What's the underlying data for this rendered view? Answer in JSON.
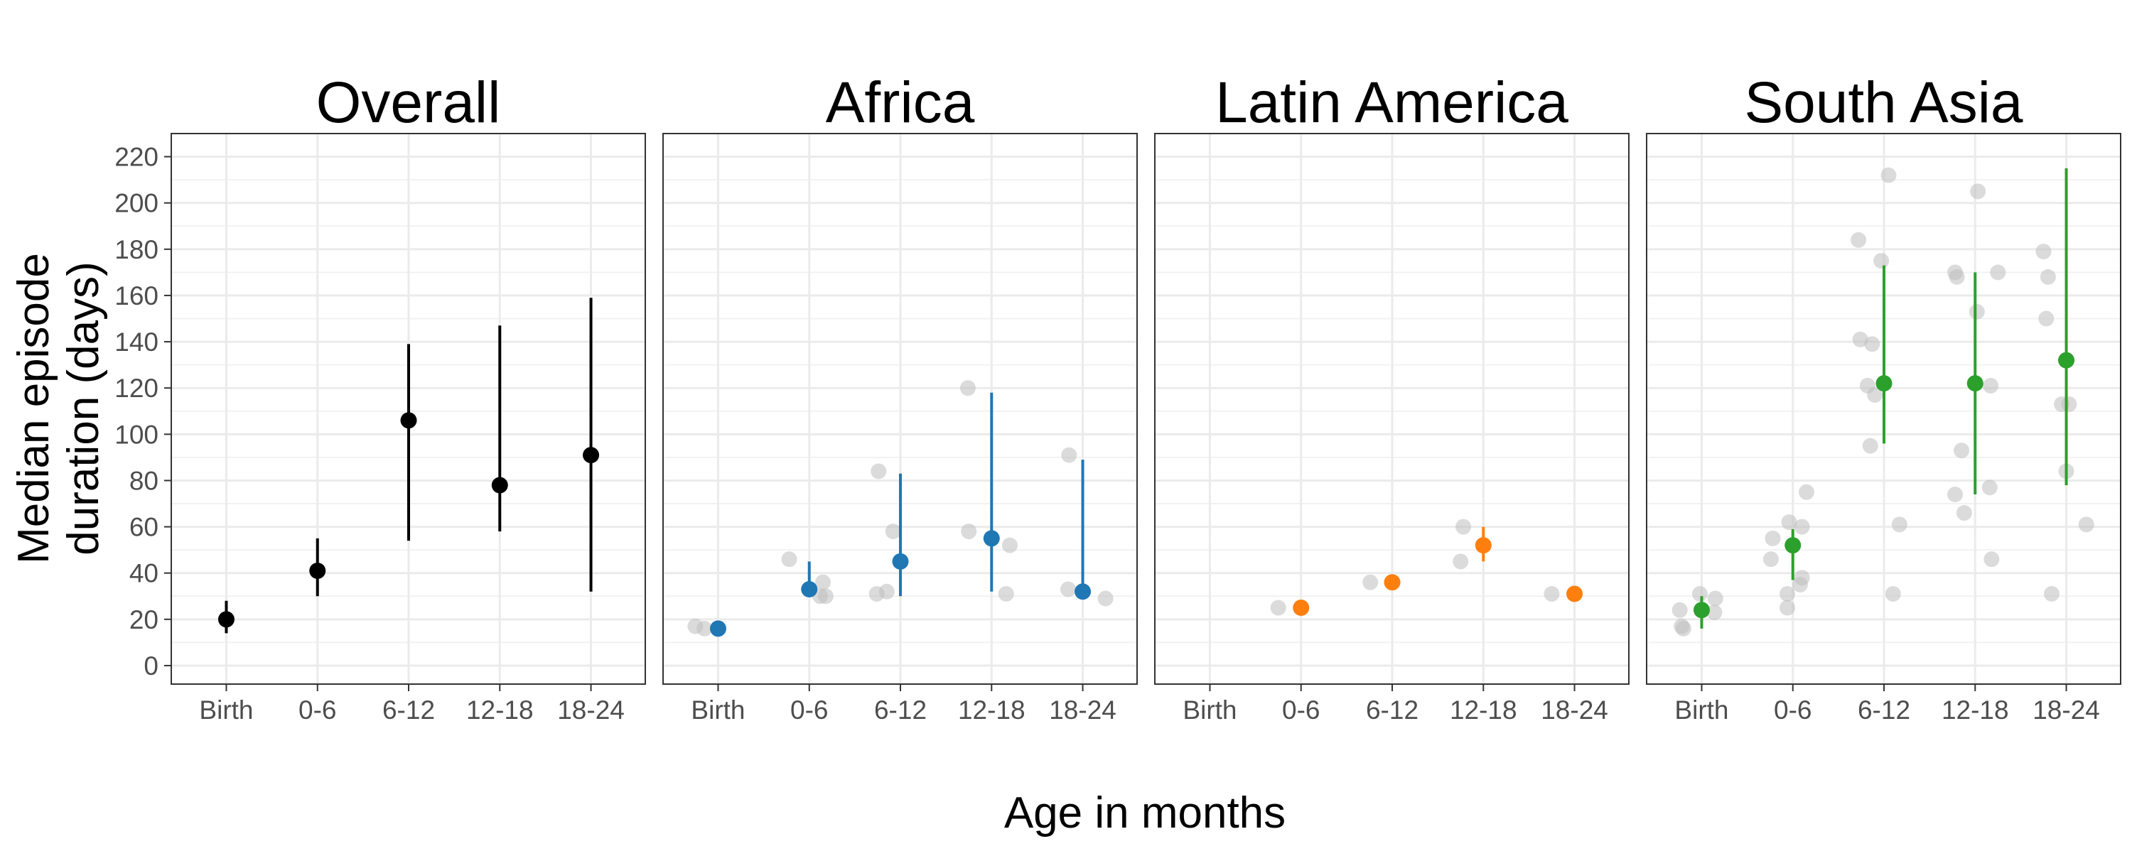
{
  "chart_data": {
    "type": "scatter",
    "ylabel_lines": [
      "Median episode",
      "duration (days)"
    ],
    "xlabel": "Age in months",
    "categories": [
      "Birth",
      "0-6",
      "6-12",
      "12-18",
      "18-24"
    ],
    "y_ticks": [
      0,
      20,
      40,
      60,
      80,
      100,
      120,
      140,
      160,
      180,
      200,
      220
    ],
    "ylim": [
      -8,
      230
    ],
    "grid": true,
    "colors": {
      "Overall": "#000000",
      "Africa": "#1f77b4",
      "Latin America": "#ff7f0e",
      "South Asia": "#2ca02c",
      "individual_points": "#bdbdbd"
    },
    "panels": [
      {
        "title": "Overall",
        "summary": [
          {
            "category": "Birth",
            "median": 20,
            "low": 14,
            "high": 28
          },
          {
            "category": "0-6",
            "median": 41,
            "low": 30,
            "high": 55
          },
          {
            "category": "6-12",
            "median": 106,
            "low": 54,
            "high": 139
          },
          {
            "category": "12-18",
            "median": 78,
            "low": 58,
            "high": 147
          },
          {
            "category": "18-24",
            "median": 91,
            "low": 32,
            "high": 159
          }
        ],
        "points": []
      },
      {
        "title": "Africa",
        "summary": [
          {
            "category": "Birth",
            "median": 16,
            "low": 16,
            "high": 16
          },
          {
            "category": "0-6",
            "median": 33,
            "low": 33,
            "high": 45
          },
          {
            "category": "6-12",
            "median": 45,
            "low": 30,
            "high": 83
          },
          {
            "category": "12-18",
            "median": 55,
            "low": 32,
            "high": 118
          },
          {
            "category": "18-24",
            "median": 32,
            "low": 32,
            "high": 89
          }
        ],
        "points": [
          {
            "category": "Birth",
            "offset": -0.25,
            "y": 17
          },
          {
            "category": "Birth",
            "offset": -0.15,
            "y": 16
          },
          {
            "category": "0-6",
            "offset": -0.22,
            "y": 46
          },
          {
            "category": "0-6",
            "offset": 0.15,
            "y": 36
          },
          {
            "category": "0-6",
            "offset": 0.12,
            "y": 30
          },
          {
            "category": "0-6",
            "offset": 0.18,
            "y": 30
          },
          {
            "category": "6-12",
            "offset": -0.24,
            "y": 84
          },
          {
            "category": "6-12",
            "offset": -0.08,
            "y": 58
          },
          {
            "category": "6-12",
            "offset": -0.15,
            "y": 32
          },
          {
            "category": "6-12",
            "offset": -0.26,
            "y": 31
          },
          {
            "category": "12-18",
            "offset": -0.26,
            "y": 120
          },
          {
            "category": "12-18",
            "offset": -0.25,
            "y": 58
          },
          {
            "category": "12-18",
            "offset": 0.2,
            "y": 52
          },
          {
            "category": "12-18",
            "offset": 0.16,
            "y": 31
          },
          {
            "category": "18-24",
            "offset": -0.15,
            "y": 91
          },
          {
            "category": "18-24",
            "offset": -0.16,
            "y": 33
          },
          {
            "category": "18-24",
            "offset": 0.25,
            "y": 29
          }
        ]
      },
      {
        "title": "Latin America",
        "summary": [
          {
            "category": "0-6",
            "median": 25,
            "low": 25,
            "high": 25
          },
          {
            "category": "6-12",
            "median": 36,
            "low": 36,
            "high": 36
          },
          {
            "category": "12-18",
            "median": 52,
            "low": 45,
            "high": 60
          },
          {
            "category": "18-24",
            "median": 31,
            "low": 31,
            "high": 31
          }
        ],
        "points": [
          {
            "category": "0-6",
            "offset": -0.25,
            "y": 25
          },
          {
            "category": "6-12",
            "offset": -0.24,
            "y": 36
          },
          {
            "category": "12-18",
            "offset": -0.22,
            "y": 60
          },
          {
            "category": "12-18",
            "offset": -0.25,
            "y": 45
          },
          {
            "category": "18-24",
            "offset": -0.25,
            "y": 31
          }
        ]
      },
      {
        "title": "South Asia",
        "summary": [
          {
            "category": "Birth",
            "median": 24,
            "low": 16,
            "high": 30
          },
          {
            "category": "0-6",
            "median": 52,
            "low": 37,
            "high": 59
          },
          {
            "category": "6-12",
            "median": 122,
            "low": 96,
            "high": 173
          },
          {
            "category": "12-18",
            "median": 122,
            "low": 74,
            "high": 170
          },
          {
            "category": "18-24",
            "median": 132,
            "low": 78,
            "high": 215
          }
        ],
        "points": [
          {
            "category": "Birth",
            "offset": -0.24,
            "y": 24
          },
          {
            "category": "Birth",
            "offset": -0.2,
            "y": 16
          },
          {
            "category": "Birth",
            "offset": -0.22,
            "y": 17
          },
          {
            "category": "Birth",
            "offset": -0.02,
            "y": 31
          },
          {
            "category": "Birth",
            "offset": 0.15,
            "y": 29
          },
          {
            "category": "Birth",
            "offset": 0.14,
            "y": 23
          },
          {
            "category": "0-6",
            "offset": -0.04,
            "y": 62
          },
          {
            "category": "0-6",
            "offset": -0.22,
            "y": 55
          },
          {
            "category": "0-6",
            "offset": -0.24,
            "y": 46
          },
          {
            "category": "0-6",
            "offset": 0.1,
            "y": 60
          },
          {
            "category": "0-6",
            "offset": 0.15,
            "y": 75
          },
          {
            "category": "0-6",
            "offset": -0.06,
            "y": 31
          },
          {
            "category": "0-6",
            "offset": -0.06,
            "y": 25
          },
          {
            "category": "0-6",
            "offset": 0.08,
            "y": 35
          },
          {
            "category": "0-6",
            "offset": 0.1,
            "y": 38
          },
          {
            "category": "6-12",
            "offset": -0.28,
            "y": 184
          },
          {
            "category": "6-12",
            "offset": -0.03,
            "y": 175
          },
          {
            "category": "6-12",
            "offset": 0.05,
            "y": 212
          },
          {
            "category": "6-12",
            "offset": -0.26,
            "y": 141
          },
          {
            "category": "6-12",
            "offset": -0.13,
            "y": 139
          },
          {
            "category": "6-12",
            "offset": -0.18,
            "y": 121
          },
          {
            "category": "6-12",
            "offset": -0.1,
            "y": 117
          },
          {
            "category": "6-12",
            "offset": -0.15,
            "y": 95
          },
          {
            "category": "6-12",
            "offset": 0.17,
            "y": 61
          },
          {
            "category": "6-12",
            "offset": 0.1,
            "y": 31
          },
          {
            "category": "12-18",
            "offset": -0.2,
            "y": 168
          },
          {
            "category": "12-18",
            "offset": -0.22,
            "y": 170
          },
          {
            "category": "12-18",
            "offset": 0.25,
            "y": 170
          },
          {
            "category": "12-18",
            "offset": 0.03,
            "y": 205
          },
          {
            "category": "12-18",
            "offset": 0.02,
            "y": 153
          },
          {
            "category": "12-18",
            "offset": 0.17,
            "y": 121
          },
          {
            "category": "12-18",
            "offset": -0.15,
            "y": 93
          },
          {
            "category": "12-18",
            "offset": -0.22,
            "y": 74
          },
          {
            "category": "12-18",
            "offset": -0.12,
            "y": 66
          },
          {
            "category": "12-18",
            "offset": 0.16,
            "y": 77
          },
          {
            "category": "12-18",
            "offset": 0.18,
            "y": 46
          },
          {
            "category": "18-24",
            "offset": -0.25,
            "y": 179
          },
          {
            "category": "18-24",
            "offset": -0.2,
            "y": 168
          },
          {
            "category": "18-24",
            "offset": -0.22,
            "y": 150
          },
          {
            "category": "18-24",
            "offset": -0.05,
            "y": 113
          },
          {
            "category": "18-24",
            "offset": 0.03,
            "y": 113
          },
          {
            "category": "18-24",
            "offset": 0.0,
            "y": 84
          },
          {
            "category": "18-24",
            "offset": 0.22,
            "y": 61
          },
          {
            "category": "18-24",
            "offset": -0.16,
            "y": 31
          }
        ]
      }
    ]
  }
}
